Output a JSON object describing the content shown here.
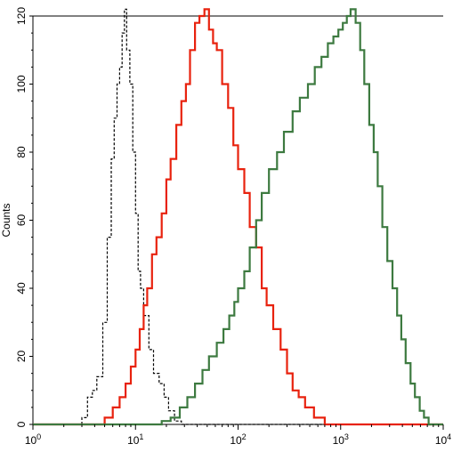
{
  "chart_data": {
    "type": "line",
    "title": "",
    "xlabel": "",
    "ylabel": "Counts",
    "xscale": "log",
    "xlim": [
      1,
      10000
    ],
    "ylim": [
      0,
      120
    ],
    "y_ticks": [
      0,
      20,
      40,
      60,
      80,
      100,
      120
    ],
    "x_ticks": [
      {
        "value": 1,
        "base": "10",
        "exp": "0"
      },
      {
        "value": 10,
        "base": "10",
        "exp": "1"
      },
      {
        "value": 100,
        "base": "10",
        "exp": "2"
      },
      {
        "value": 1000,
        "base": "10",
        "exp": "3"
      },
      {
        "value": 10000,
        "base": "10",
        "exp": "4"
      }
    ],
    "grid": false,
    "legend": "none",
    "series": [
      {
        "color": "#000000",
        "style": "dashed",
        "points": [
          [
            1,
            0
          ],
          [
            2.5,
            0
          ],
          [
            3.0,
            2
          ],
          [
            3.4,
            8
          ],
          [
            3.8,
            10
          ],
          [
            4.2,
            14
          ],
          [
            4.8,
            30
          ],
          [
            5.3,
            55
          ],
          [
            5.8,
            78
          ],
          [
            6.2,
            90
          ],
          [
            6.6,
            100
          ],
          [
            7.0,
            105
          ],
          [
            7.4,
            115
          ],
          [
            7.8,
            122
          ],
          [
            8.2,
            110
          ],
          [
            8.8,
            100
          ],
          [
            9.4,
            80
          ],
          [
            10.0,
            62
          ],
          [
            10.6,
            45
          ],
          [
            11.2,
            40
          ],
          [
            12.0,
            32
          ],
          [
            13.5,
            22
          ],
          [
            15.0,
            15
          ],
          [
            17.0,
            12
          ],
          [
            19.0,
            8
          ],
          [
            21.0,
            4
          ],
          [
            24.0,
            1
          ],
          [
            28.0,
            0
          ],
          [
            10000,
            0
          ]
        ]
      },
      {
        "color": "#e8220e",
        "style": "solid",
        "points": [
          [
            1,
            0
          ],
          [
            5.0,
            2
          ],
          [
            6.0,
            5
          ],
          [
            7.0,
            8
          ],
          [
            8.0,
            12
          ],
          [
            9.0,
            17
          ],
          [
            10.0,
            22
          ],
          [
            11.0,
            28
          ],
          [
            12.0,
            35
          ],
          [
            13.0,
            40
          ],
          [
            14.5,
            50
          ],
          [
            16.0,
            55
          ],
          [
            18.0,
            62
          ],
          [
            20.0,
            72
          ],
          [
            22.0,
            78
          ],
          [
            25.0,
            88
          ],
          [
            28.0,
            95
          ],
          [
            31.0,
            100
          ],
          [
            34.0,
            110
          ],
          [
            38.0,
            118
          ],
          [
            42.0,
            120
          ],
          [
            47.0,
            122
          ],
          [
            52.0,
            116
          ],
          [
            57.0,
            112
          ],
          [
            62.0,
            110
          ],
          [
            70.0,
            100
          ],
          [
            80.0,
            93
          ],
          [
            90.0,
            82
          ],
          [
            100.0,
            75
          ],
          [
            115.0,
            68
          ],
          [
            130.0,
            58
          ],
          [
            150.0,
            52
          ],
          [
            170.0,
            40
          ],
          [
            190.0,
            35
          ],
          [
            220.0,
            28
          ],
          [
            260.0,
            22
          ],
          [
            300.0,
            15
          ],
          [
            340.0,
            10
          ],
          [
            390.0,
            8
          ],
          [
            450.0,
            5
          ],
          [
            550.0,
            2
          ],
          [
            700.0,
            0
          ],
          [
            10000,
            0
          ]
        ]
      },
      {
        "color": "#3d7a40",
        "style": "solid",
        "points": [
          [
            1,
            0
          ],
          [
            14,
            0
          ],
          [
            18,
            1
          ],
          [
            22,
            2
          ],
          [
            27,
            5
          ],
          [
            32,
            8
          ],
          [
            38,
            12
          ],
          [
            45,
            16
          ],
          [
            52,
            20
          ],
          [
            62,
            24
          ],
          [
            72,
            28
          ],
          [
            82,
            32
          ],
          [
            92,
            36
          ],
          [
            100,
            40
          ],
          [
            115,
            45
          ],
          [
            130,
            52
          ],
          [
            150,
            60
          ],
          [
            170,
            68
          ],
          [
            200,
            75
          ],
          [
            240,
            80
          ],
          [
            280,
            86
          ],
          [
            340,
            92
          ],
          [
            400,
            96
          ],
          [
            480,
            100
          ],
          [
            560,
            105
          ],
          [
            650,
            108
          ],
          [
            750,
            112
          ],
          [
            850,
            114
          ],
          [
            950,
            116
          ],
          [
            1050,
            118
          ],
          [
            1150,
            120
          ],
          [
            1250,
            122
          ],
          [
            1400,
            118
          ],
          [
            1550,
            110
          ],
          [
            1700,
            100
          ],
          [
            1900,
            88
          ],
          [
            2100,
            80
          ],
          [
            2300,
            70
          ],
          [
            2550,
            58
          ],
          [
            2850,
            48
          ],
          [
            3200,
            40
          ],
          [
            3550,
            32
          ],
          [
            3900,
            25
          ],
          [
            4300,
            18
          ],
          [
            4800,
            12
          ],
          [
            5300,
            8
          ],
          [
            5900,
            4
          ],
          [
            6500,
            2
          ],
          [
            7200,
            0
          ],
          [
            10000,
            0
          ]
        ]
      }
    ]
  }
}
